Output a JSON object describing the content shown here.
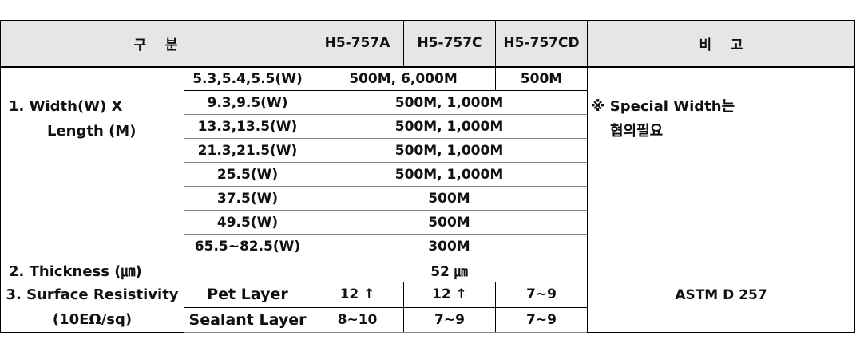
{
  "header": {
    "category": "구    분",
    "models": [
      "H5-757A",
      "H5-757C",
      "H5-757CD"
    ],
    "remarks": "비    고"
  },
  "width_length": {
    "label_line1": "1. Width(W) X",
    "label_line2": "Length (M)",
    "rows": [
      {
        "width": "5.3,5.4,5.5(W)",
        "values": [
          "500M, 6,000M",
          "500M"
        ]
      },
      {
        "width": "9.3,9.5(W)",
        "values": [
          "500M, 1,000M"
        ]
      },
      {
        "width": "13.3,13.5(W)",
        "values": [
          "500M, 1,000M"
        ]
      },
      {
        "width": "21.3,21.5(W)",
        "values": [
          "500M, 1,000M"
        ]
      },
      {
        "width": "25.5(W)",
        "values": [
          "500M, 1,000M"
        ]
      },
      {
        "width": "37.5(W)",
        "values": [
          "500M"
        ]
      },
      {
        "width": "49.5(W)",
        "values": [
          "500M"
        ]
      },
      {
        "width": "65.5~82.5(W)",
        "values": [
          "300M"
        ]
      }
    ],
    "remark_line1": "※ Special Width는",
    "remark_line2": "협의필요"
  },
  "thickness": {
    "label": "2. Thickness (㎛)",
    "value": "52 ㎛"
  },
  "surface_resistivity": {
    "label_line1": "3. Surface Resistivity",
    "label_line2": "(10EΩ/sq)",
    "rows": [
      {
        "layer": "Pet Layer",
        "values": [
          "12 ↑",
          "12 ↑",
          "7~9"
        ]
      },
      {
        "layer": "Sealant Layer",
        "values": [
          "8~10",
          "7~9",
          "7~9"
        ]
      }
    ],
    "remark": "ASTM D 257"
  }
}
